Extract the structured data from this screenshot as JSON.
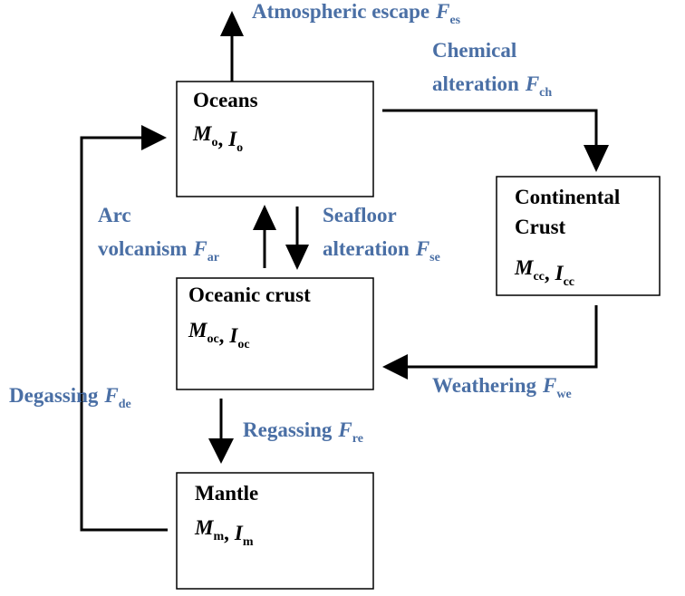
{
  "nodes": [
    {
      "lines": [
        "Oceans"
      ],
      "vars": [
        {
          "symbol": "M",
          "sub": "o"
        },
        {
          "symbol": "I",
          "sub": "o"
        }
      ],
      "separator": ","
    },
    {
      "lines": [
        "Continental",
        "Crust"
      ],
      "vars": [
        {
          "symbol": "M",
          "sub": "cc"
        },
        {
          "symbol": "I",
          "sub": "cc"
        }
      ],
      "separator": ","
    },
    {
      "lines": [
        "Oceanic crust"
      ],
      "vars": [
        {
          "symbol": "M",
          "sub": "oc"
        },
        {
          "symbol": "I",
          "sub": "oc"
        }
      ],
      "separator": ","
    },
    {
      "lines": [
        "Mantle"
      ],
      "vars": [
        {
          "symbol": "M",
          "sub": "m"
        },
        {
          "symbol": "I",
          "sub": "m"
        }
      ],
      "separator": ","
    }
  ],
  "fluxes": [
    {
      "lines": [
        "Atmospheric escape"
      ],
      "symbol": "F",
      "sub": "es"
    },
    {
      "lines": [
        "Chemical",
        "alteration"
      ],
      "symbol": "F",
      "sub": "ch"
    },
    {
      "lines": [
        "Arc",
        "volcanism"
      ],
      "symbol": "F",
      "sub": "ar"
    },
    {
      "lines": [
        "Seafloor",
        "alteration"
      ],
      "symbol": "F",
      "sub": "se"
    },
    {
      "lines": [
        "Weathering"
      ],
      "symbol": "F",
      "sub": "we"
    },
    {
      "lines": [
        "Regassing"
      ],
      "symbol": "F",
      "sub": "re"
    },
    {
      "lines": [
        "Degassing"
      ],
      "symbol": "F",
      "sub": "de"
    }
  ]
}
